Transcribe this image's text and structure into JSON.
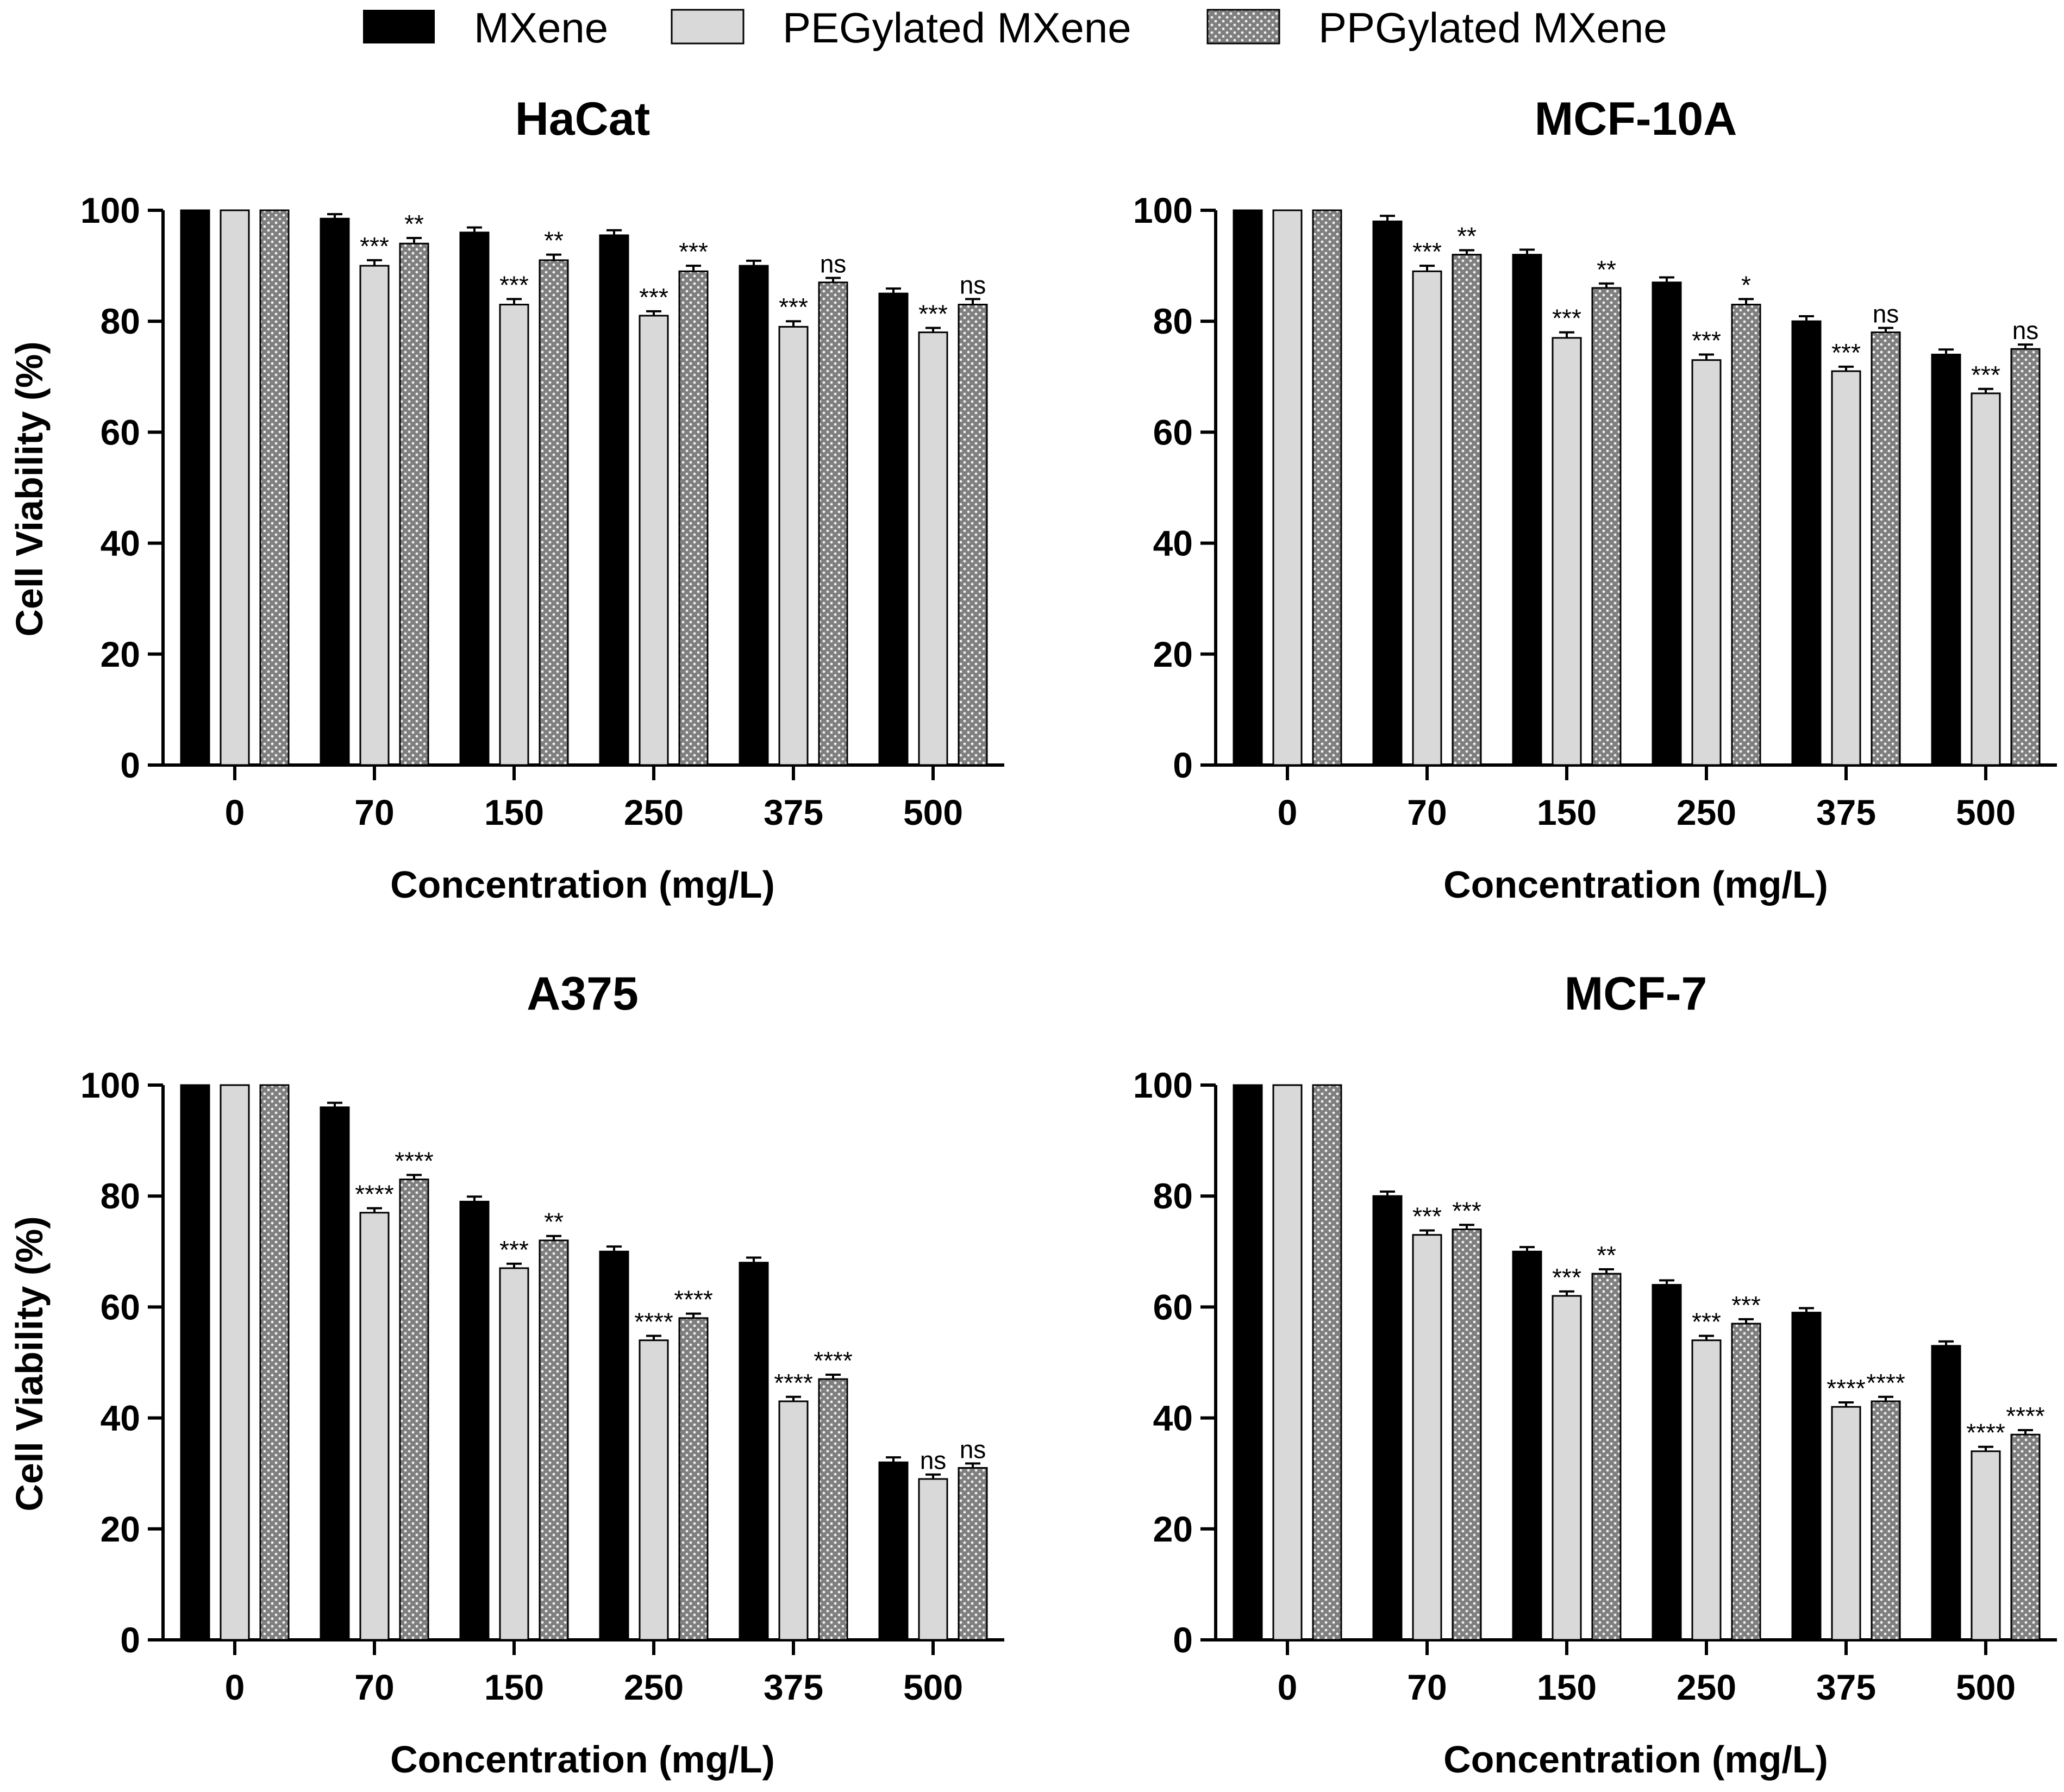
{
  "legend": [
    {
      "name": "MXene",
      "swatch": "solid-black"
    },
    {
      "name": "PEGylated MXene",
      "swatch": "light-gray"
    },
    {
      "name": "PPGylated MXene",
      "swatch": "dotted-gray"
    }
  ],
  "colors": {
    "mxene": "#000000",
    "pegylated": "#d9d9d9",
    "ppgylated": "#7f7f7f",
    "dot": "#f2f2f2",
    "axis": "#000000"
  },
  "chart_data": [
    {
      "type": "bar",
      "title": "HaCat",
      "xlabel": "Concentration (mg/L)",
      "ylabel": "Cell Viability (%)",
      "ylim": [
        0,
        100
      ],
      "yticks": [
        "0",
        "20",
        "40",
        "60",
        "80",
        "100"
      ],
      "categories": [
        "0",
        "70",
        "150",
        "250",
        "375",
        "500"
      ],
      "series": [
        {
          "name": "MXene",
          "values": [
            100,
            98.5,
            96,
            95.5,
            90,
            85
          ],
          "errors": [
            0,
            0.8,
            0.9,
            0.9,
            0.9,
            0.9
          ],
          "labels": [
            "",
            "",
            "",
            "",
            "",
            ""
          ]
        },
        {
          "name": "PEGylated MXene",
          "values": [
            100,
            90,
            83,
            81,
            79,
            78
          ],
          "errors": [
            0,
            1.0,
            1.0,
            0.8,
            1.0,
            0.8
          ],
          "labels": [
            "",
            "***",
            "***",
            "***",
            "***",
            "***"
          ]
        },
        {
          "name": "PPGylated MXene",
          "values": [
            100,
            94,
            91,
            89,
            87,
            83
          ],
          "errors": [
            0,
            1.0,
            1.0,
            1.0,
            0.8,
            1.0
          ],
          "labels": [
            "",
            "**",
            "**",
            "***",
            "ns",
            "ns"
          ]
        }
      ]
    },
    {
      "type": "bar",
      "title": "MCF-10A",
      "xlabel": "Concentration (mg/L)",
      "ylabel": "",
      "ylim": [
        0,
        100
      ],
      "yticks": [
        "0",
        "20",
        "40",
        "60",
        "80",
        "100"
      ],
      "categories": [
        "0",
        "70",
        "150",
        "250",
        "375",
        "500"
      ],
      "series": [
        {
          "name": "MXene",
          "values": [
            100,
            98,
            92,
            87,
            80,
            74
          ],
          "errors": [
            0,
            1.0,
            0.9,
            0.9,
            0.9,
            0.9
          ],
          "labels": [
            "",
            "",
            "",
            "",
            "",
            ""
          ]
        },
        {
          "name": "PEGylated MXene",
          "values": [
            100,
            89,
            77,
            73,
            71,
            67
          ],
          "errors": [
            0,
            1.0,
            1.0,
            1.0,
            0.8,
            0.8
          ],
          "labels": [
            "",
            "***",
            "***",
            "***",
            "***",
            "***"
          ]
        },
        {
          "name": "PPGylated MXene",
          "values": [
            100,
            92,
            86,
            83,
            78,
            75
          ],
          "errors": [
            0,
            0.8,
            0.8,
            1.0,
            0.8,
            0.8
          ],
          "labels": [
            "",
            "**",
            "**",
            "*",
            "ns",
            "ns"
          ]
        }
      ]
    },
    {
      "type": "bar",
      "title": "A375",
      "xlabel": "Concentration (mg/L)",
      "ylabel": "Cell Viability (%)",
      "ylim": [
        0,
        100
      ],
      "yticks": [
        "0",
        "20",
        "40",
        "60",
        "80",
        "100"
      ],
      "categories": [
        "0",
        "70",
        "150",
        "250",
        "375",
        "500"
      ],
      "series": [
        {
          "name": "MXene",
          "values": [
            100,
            96,
            79,
            70,
            68,
            32
          ],
          "errors": [
            0,
            0.8,
            0.9,
            0.9,
            0.9,
            0.9
          ],
          "labels": [
            "",
            "",
            "",
            "",
            "",
            ""
          ]
        },
        {
          "name": "PEGylated MXene",
          "values": [
            100,
            77,
            67,
            54,
            43,
            29
          ],
          "errors": [
            0,
            0.8,
            0.8,
            0.8,
            0.8,
            0.8
          ],
          "labels": [
            "",
            "****",
            "***",
            "****",
            "****",
            "ns"
          ]
        },
        {
          "name": "PPGylated MXene",
          "values": [
            100,
            83,
            72,
            58,
            47,
            31
          ],
          "errors": [
            0,
            0.8,
            0.8,
            0.8,
            0.8,
            0.8
          ],
          "labels": [
            "",
            "****",
            "**",
            "****",
            "****",
            "ns"
          ]
        }
      ]
    },
    {
      "type": "bar",
      "title": "MCF-7",
      "xlabel": "Concentration (mg/L)",
      "ylabel": "",
      "ylim": [
        0,
        100
      ],
      "yticks": [
        "0",
        "20",
        "40",
        "60",
        "80",
        "100"
      ],
      "categories": [
        "0",
        "70",
        "150",
        "250",
        "375",
        "500"
      ],
      "series": [
        {
          "name": "MXene",
          "values": [
            100,
            80,
            70,
            64,
            59,
            53
          ],
          "errors": [
            0,
            0.8,
            0.8,
            0.8,
            0.8,
            0.8
          ],
          "labels": [
            "",
            "",
            "",
            "",
            "",
            ""
          ]
        },
        {
          "name": "PEGylated MXene",
          "values": [
            100,
            73,
            62,
            54,
            42,
            34
          ],
          "errors": [
            0,
            0.8,
            0.8,
            0.8,
            0.8,
            0.8
          ],
          "labels": [
            "",
            "***",
            "***",
            "***",
            "****",
            "****"
          ]
        },
        {
          "name": "PPGylated MXene",
          "values": [
            100,
            74,
            66,
            57,
            43,
            37
          ],
          "errors": [
            0,
            0.8,
            0.8,
            0.8,
            0.8,
            0.8
          ],
          "labels": [
            "",
            "***",
            "**",
            "***",
            "****",
            "****"
          ]
        }
      ]
    }
  ]
}
